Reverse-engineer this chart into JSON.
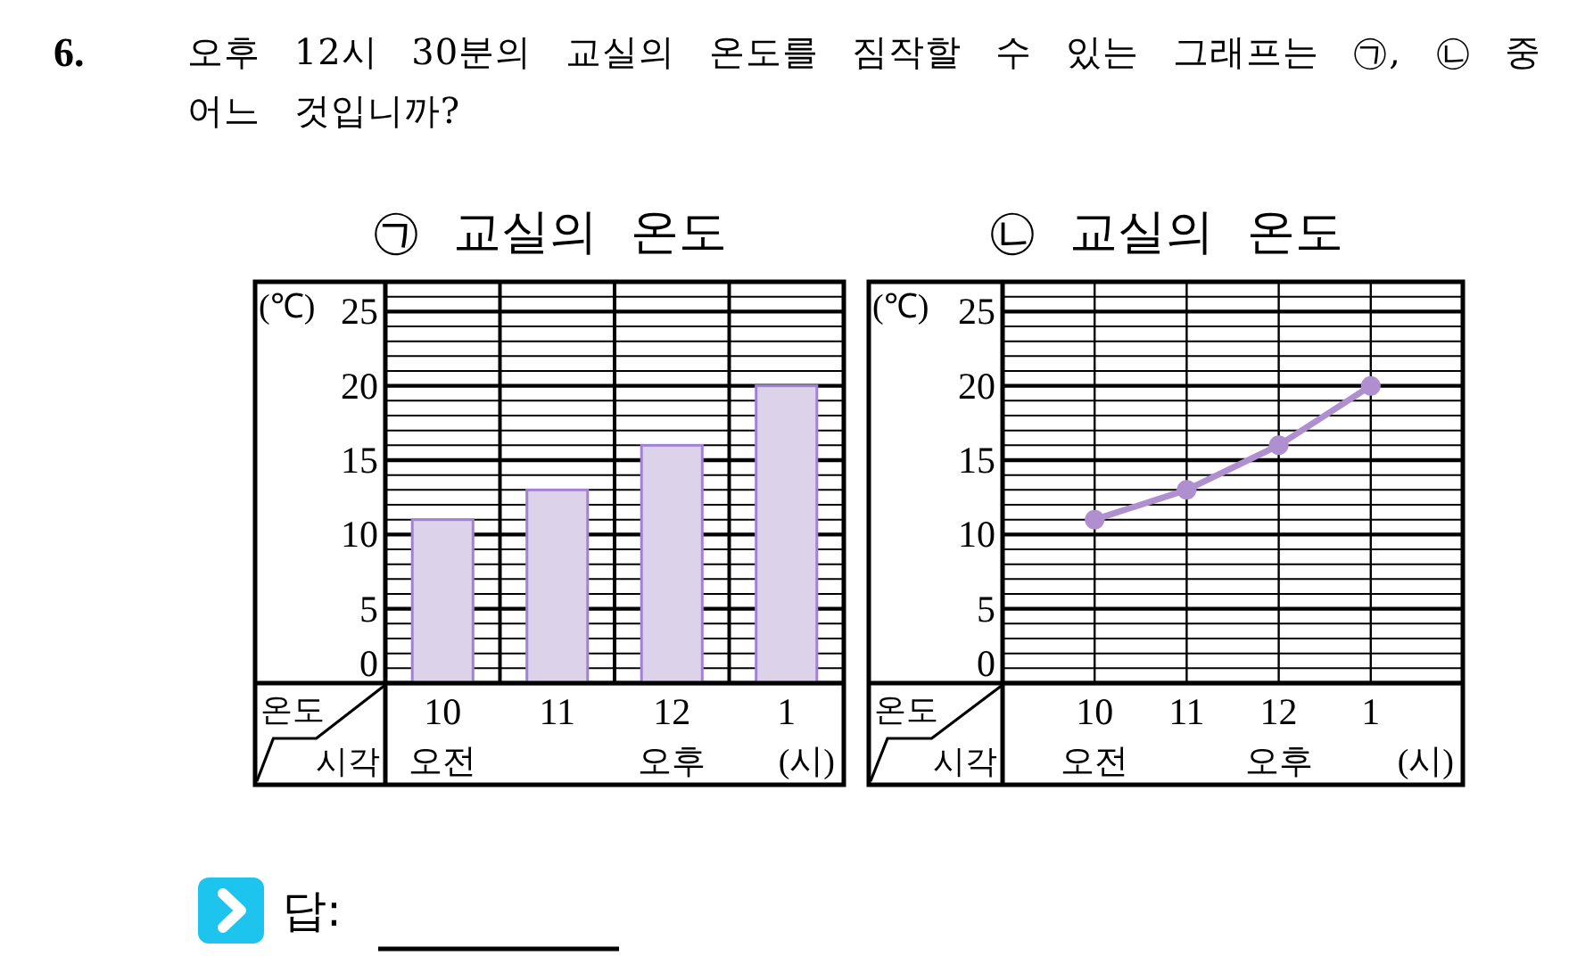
{
  "chart_data": [
    {
      "type": "other",
      "annotations": [
        "6.",
        "오후 12시 30분의 교실의 온도를 짐작할 수 있는 그래프는 ㉠, ㉡ 중 어느 것입니까?"
      ]
    },
    {
      "type": "bar",
      "title": "㉠ 교실의 온도",
      "ylabel": "(℃)",
      "xlabel": "(시)",
      "annotations": [
        "온도",
        "시각"
      ],
      "categories": [
        "10\n오전",
        "11",
        "12\n오후",
        "1"
      ],
      "values": [
        11,
        13,
        16,
        20
      ],
      "color": "#dcd3ea",
      "ylim": [
        0,
        27
      ],
      "yticks": [
        0,
        5,
        10,
        15,
        20,
        25
      ],
      "grid": true
    },
    {
      "type": "line",
      "title": "㉡ 교실의 온도",
      "ylabel": "(℃)",
      "xlabel": "(시)",
      "annotations": [
        "온도",
        "시각"
      ],
      "categories": [
        "10\n오전",
        "11",
        "12\n오후",
        "1"
      ],
      "values": [
        11,
        13,
        16,
        20
      ],
      "color": "#b08fd0",
      "marker": "circle",
      "line_style": "solid",
      "ylim": [
        0,
        27
      ],
      "yticks": [
        0,
        5,
        10,
        15,
        20,
        25
      ],
      "grid": true
    },
    {
      "type": "other",
      "annotations": [
        "답:"
      ]
    }
  ]
}
